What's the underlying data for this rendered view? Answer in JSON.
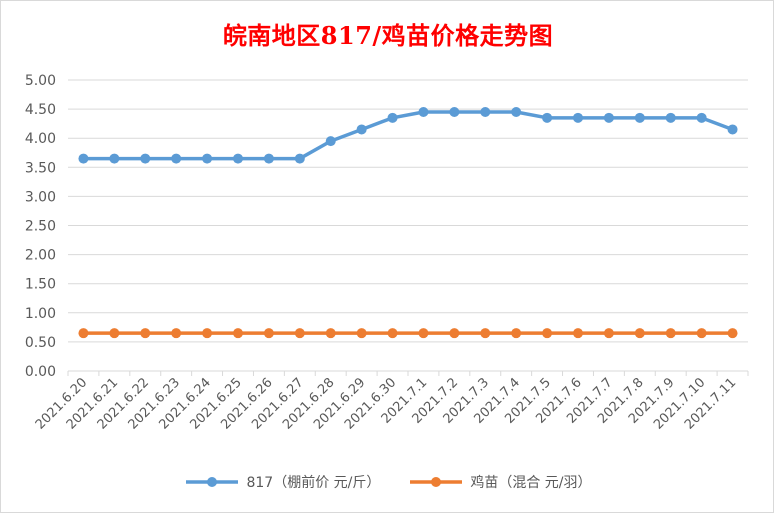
{
  "chart_data": {
    "type": "line",
    "title": "皖南地区817/鸡苗价格走势图",
    "xlabel": "",
    "ylabel": "",
    "ylim": [
      0,
      5
    ],
    "yticks": [
      "0.00",
      "0.50",
      "1.00",
      "1.50",
      "2.00",
      "2.50",
      "3.00",
      "3.50",
      "4.00",
      "4.50",
      "5.00"
    ],
    "grid": true,
    "legend_position": "bottom",
    "categories": [
      "2021.6.20",
      "2021.6.21",
      "2021.6.22",
      "2021.6.23",
      "2021.6.24",
      "2021.6.25",
      "2021.6.26",
      "2021.6.27",
      "2021.6.28",
      "2021.6.29",
      "2021.6.30",
      "2021.7.1",
      "2021.7.2",
      "2021.7.3",
      "2021.7.4",
      "2021.7.5",
      "2021.7.6",
      "2021.7.7",
      "2021.7.8",
      "2021.7.9",
      "2021.7.10",
      "2021.7.11"
    ],
    "series": [
      {
        "name": "817（棚前价 元/斤）",
        "color": "#5b9bd5",
        "values": [
          3.65,
          3.65,
          3.65,
          3.65,
          3.65,
          3.65,
          3.65,
          3.65,
          3.95,
          4.15,
          4.35,
          4.45,
          4.45,
          4.45,
          4.45,
          4.35,
          4.35,
          4.35,
          4.35,
          4.35,
          4.35,
          4.15
        ]
      },
      {
        "name": "鸡苗（混合 元/羽）",
        "color": "#ed7d31",
        "values": [
          0.65,
          0.65,
          0.65,
          0.65,
          0.65,
          0.65,
          0.65,
          0.65,
          0.65,
          0.65,
          0.65,
          0.65,
          0.65,
          0.65,
          0.65,
          0.65,
          0.65,
          0.65,
          0.65,
          0.65,
          0.65,
          0.65
        ]
      }
    ]
  }
}
